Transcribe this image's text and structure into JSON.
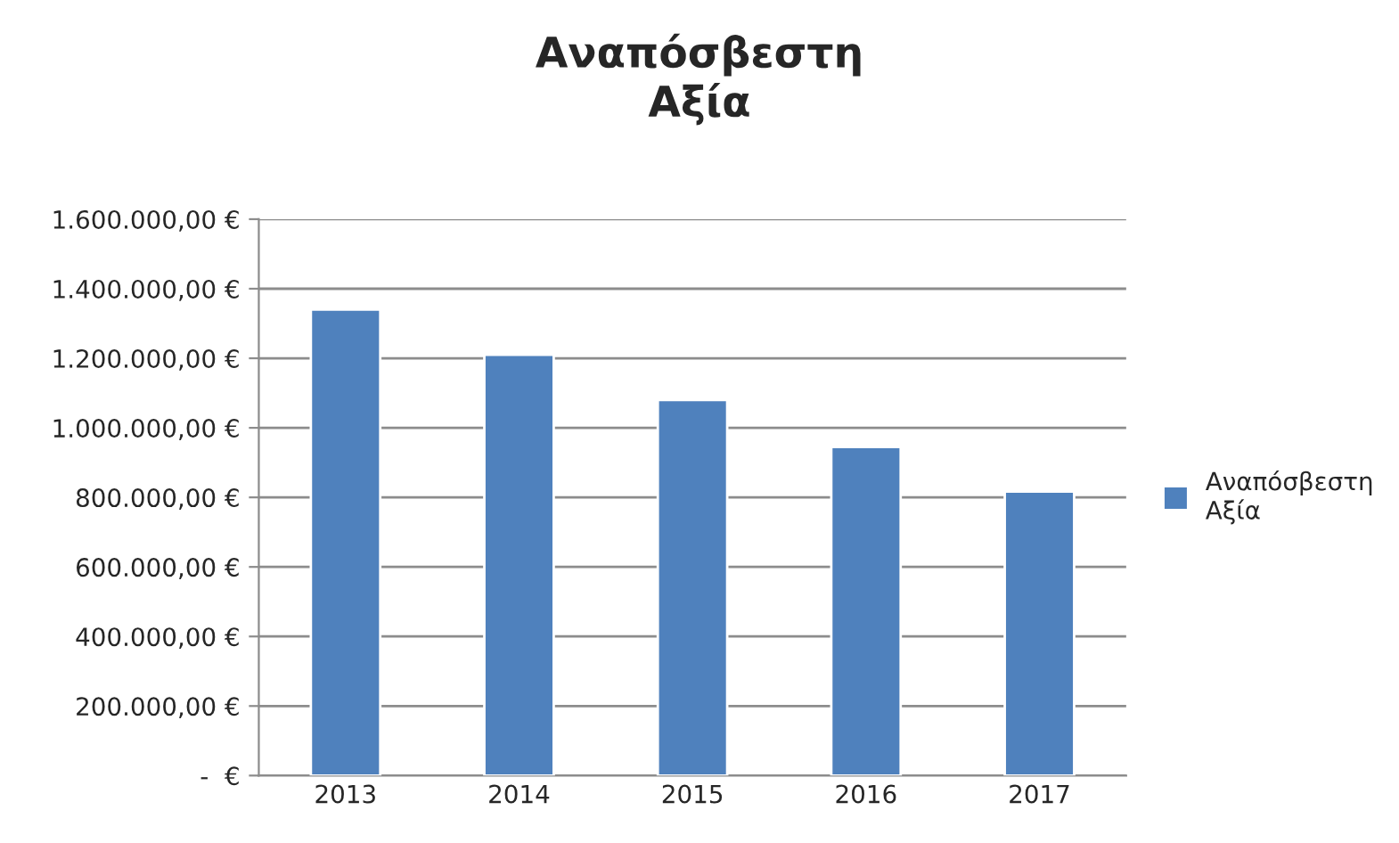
{
  "chart_data": {
    "type": "bar",
    "title": "Αναπόσβεστη Αξία",
    "categories": [
      "2013",
      "2014",
      "2015",
      "2016",
      "2017"
    ],
    "series": [
      {
        "name": "Αναπόσβεστη Αξία",
        "color": "#4f81bd",
        "values": [
          1340000,
          1210000,
          1080000,
          945000,
          817000
        ]
      }
    ],
    "ylim": [
      0,
      1600000
    ],
    "yticks": [
      {
        "value": 0,
        "label": "-  €"
      },
      {
        "value": 200000,
        "label": "200.000,00 €"
      },
      {
        "value": 400000,
        "label": "400.000,00 €"
      },
      {
        "value": 600000,
        "label": "600.000,00 €"
      },
      {
        "value": 800000,
        "label": "800.000,00 €"
      },
      {
        "value": 1000000,
        "label": "1.000.000,00 €"
      },
      {
        "value": 1200000,
        "label": "1.200.000,00 €"
      },
      {
        "value": 1400000,
        "label": "1.400.000,00 €"
      },
      {
        "value": 1600000,
        "label": "1.600.000,00 €"
      }
    ],
    "grid": "y",
    "legend": "right"
  }
}
